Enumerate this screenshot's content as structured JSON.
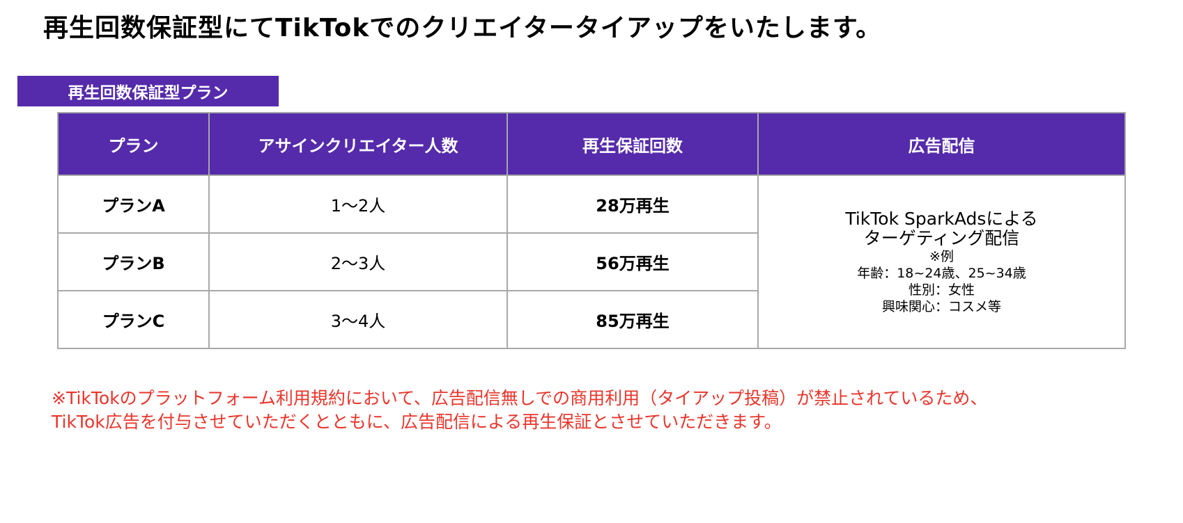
{
  "title": "再生回数保証型にてTikTokでのクリエイタータイアップをいたします。",
  "plan_banner": "再生回数保証型プラン",
  "table": {
    "headers": [
      "プラン",
      "アサインクリエイター人数",
      "再生保証回数",
      "広告配信"
    ],
    "rows": [
      {
        "plan": "プランA",
        "creators": "1〜2人",
        "plays": "28万再生"
      },
      {
        "plan": "プランB",
        "creators": "2〜3人",
        "plays": "56万再生"
      },
      {
        "plan": "プランC",
        "creators": "3〜4人",
        "plays": "85万再生"
      }
    ],
    "ads": {
      "line1": "TikTok SparkAdsによる",
      "line2": "ターゲティング配信",
      "example": "※例",
      "age": "年齢：18~24歳、25~34歳",
      "gender": "性別：女性",
      "interest": "興味関心：コスメ等"
    }
  },
  "note": {
    "line1": "※TikTokのプラットフォーム利用規約において、広告配信無しでの商用利用（タイアップ投稿）が禁止されているため、",
    "line2": "TikTok広告を付与させていただくとともに、広告配信による再生保証とさせていただきます。"
  },
  "colors": {
    "header_bg": "#552bab",
    "note_text": "#e8352b",
    "border": "#a8a8a8"
  }
}
